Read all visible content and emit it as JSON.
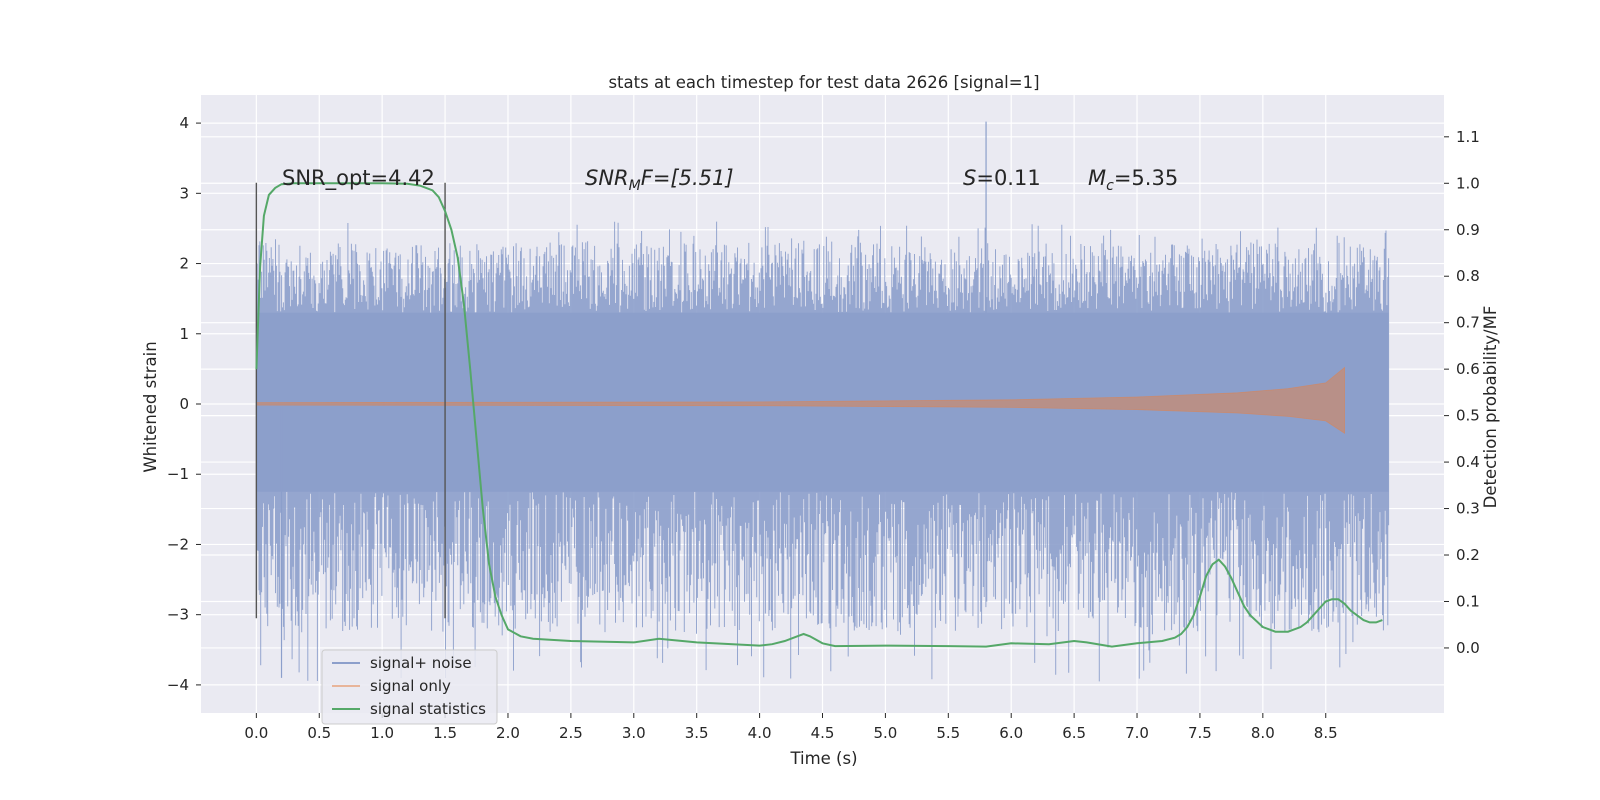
{
  "chart_data": {
    "type": "line",
    "title": "stats at each timestep for test data 2626 [signal=1]",
    "xlabel": "Time (s)",
    "ylabel_left": "Whitened strain",
    "ylabel_right": "Detection probability/MF",
    "xlim": [
      -0.44,
      9.44
    ],
    "ylim_left": [
      -4.4,
      4.4
    ],
    "ylim_right": [
      -0.14,
      1.19
    ],
    "x_ticks": [
      "0.0",
      "0.5",
      "1.0",
      "1.5",
      "2.0",
      "2.5",
      "3.0",
      "3.5",
      "4.0",
      "4.5",
      "5.0",
      "5.5",
      "6.0",
      "6.5",
      "7.0",
      "7.5",
      "8.0",
      "8.5"
    ],
    "x_tick_values": [
      0.0,
      0.5,
      1.0,
      1.5,
      2.0,
      2.5,
      3.0,
      3.5,
      4.0,
      4.5,
      5.0,
      5.5,
      6.0,
      6.5,
      7.0,
      7.5,
      8.0,
      8.5
    ],
    "y_left_ticks": [
      "4",
      "3",
      "2",
      "1",
      "0",
      "−1",
      "−2",
      "−3",
      "−4"
    ],
    "y_left_tick_values": [
      4,
      3,
      2,
      1,
      0,
      -1,
      -2,
      -3,
      -4
    ],
    "y_right_ticks": [
      "1.1",
      "1.0",
      "0.9",
      "0.8",
      "0.7",
      "0.6",
      "0.5",
      "0.4",
      "0.3",
      "0.2",
      "0.1",
      "0.0"
    ],
    "y_right_tick_values": [
      1.1,
      1.0,
      0.9,
      0.8,
      0.7,
      0.6,
      0.5,
      0.4,
      0.3,
      0.2,
      0.1,
      0.0
    ],
    "grid": true,
    "annotations": {
      "snr_opt": "SNR_opt=4.42",
      "snr_mf_base": "SNR",
      "snr_mf_sub": "M",
      "snr_mf_rest": "F=[5.51]",
      "s_var": "S",
      "s_rest": "=0.11",
      "mc_var": "M",
      "mc_sub": "c",
      "mc_rest": "=5.35"
    },
    "vertical_markers": [
      0.0,
      1.5
    ],
    "vertical_marker_range": [
      -3.05,
      3.15
    ],
    "series": [
      {
        "name": "signal+ noise",
        "axis": "left",
        "color": "#8c9fcb",
        "x_range": [
          0.0,
          9.0
        ],
        "core_band": [
          -1.25,
          1.3
        ],
        "typical_peak": 2.3,
        "max_value": 4.02,
        "min_value": -3.9
      },
      {
        "name": "signal only",
        "axis": "left",
        "color": "#dd8452",
        "x_range": [
          0.0,
          8.65
        ],
        "envelope_x": [
          0.0,
          4.0,
          6.0,
          7.0,
          7.8,
          8.2,
          8.5,
          8.65
        ],
        "envelope_amp": [
          0.02,
          0.03,
          0.06,
          0.1,
          0.16,
          0.22,
          0.3,
          0.52
        ]
      },
      {
        "name": "signal statistics",
        "axis": "right",
        "color": "#55a868",
        "x": [
          0.0,
          0.03,
          0.06,
          0.1,
          0.15,
          0.2,
          0.3,
          0.5,
          0.8,
          1.0,
          1.2,
          1.3,
          1.4,
          1.45,
          1.5,
          1.55,
          1.6,
          1.65,
          1.7,
          1.75,
          1.8,
          1.85,
          1.9,
          1.95,
          2.0,
          2.1,
          2.2,
          2.5,
          3.0,
          3.2,
          3.5,
          4.0,
          4.1,
          4.2,
          4.3,
          4.35,
          4.4,
          4.5,
          4.6,
          5.0,
          5.5,
          5.8,
          6.0,
          6.3,
          6.5,
          6.6,
          6.8,
          7.0,
          7.2,
          7.3,
          7.35,
          7.4,
          7.45,
          7.5,
          7.55,
          7.6,
          7.65,
          7.7,
          7.75,
          7.8,
          7.85,
          7.9,
          8.0,
          8.1,
          8.2,
          8.3,
          8.35,
          8.4,
          8.45,
          8.5,
          8.55,
          8.6,
          8.65,
          8.7,
          8.75,
          8.8,
          8.85,
          8.9,
          8.95
        ],
        "y": [
          0.6,
          0.82,
          0.93,
          0.975,
          0.99,
          0.998,
          1.0,
          1.0,
          1.0,
          1.0,
          0.999,
          0.995,
          0.985,
          0.97,
          0.94,
          0.9,
          0.84,
          0.74,
          0.6,
          0.45,
          0.3,
          0.18,
          0.11,
          0.07,
          0.04,
          0.025,
          0.02,
          0.015,
          0.012,
          0.02,
          0.012,
          0.005,
          0.008,
          0.015,
          0.025,
          0.03,
          0.025,
          0.01,
          0.004,
          0.005,
          0.004,
          0.003,
          0.01,
          0.008,
          0.015,
          0.012,
          0.003,
          0.01,
          0.015,
          0.022,
          0.03,
          0.045,
          0.07,
          0.11,
          0.155,
          0.18,
          0.19,
          0.175,
          0.15,
          0.12,
          0.09,
          0.07,
          0.045,
          0.035,
          0.035,
          0.045,
          0.055,
          0.07,
          0.085,
          0.1,
          0.105,
          0.105,
          0.095,
          0.08,
          0.07,
          0.06,
          0.055,
          0.055,
          0.06
        ]
      }
    ],
    "legend": {
      "position": "lower-left",
      "entries": [
        "signal+ noise",
        "signal only",
        "signal statistics"
      ]
    }
  }
}
